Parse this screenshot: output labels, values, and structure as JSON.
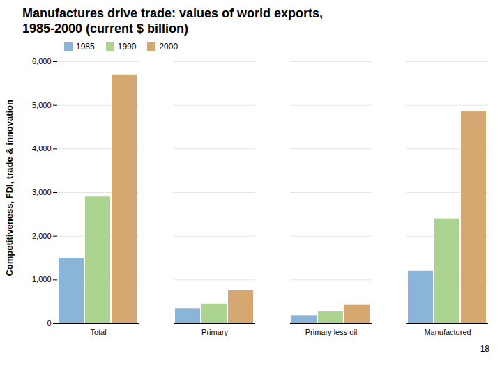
{
  "chart_data": {
    "type": "bar",
    "title": "Manufactures drive trade: values of world exports,",
    "subtitle": "1985-2000 (current $ billion)",
    "annotations": [
      "Competitiveness, FDI, trade & innovation",
      "18"
    ],
    "categories": [
      "Total",
      "Primary",
      "Primary less oil",
      "Manufactured"
    ],
    "series": [
      {
        "name": "1985",
        "color": "#8ab4d8",
        "values": [
          1500,
          330,
          170,
          1200
        ]
      },
      {
        "name": "1990",
        "color": "#aad490",
        "values": [
          2900,
          450,
          270,
          2400
        ]
      },
      {
        "name": "2000",
        "color": "#d4a870",
        "values": [
          5700,
          750,
          420,
          4850
        ]
      }
    ],
    "ylim": [
      0,
      6000
    ],
    "yticks": [
      0,
      {
        "value": 1000,
        "label": "1,000"
      },
      {
        "value": 2000,
        "label": "2,000"
      },
      {
        "value": 3000,
        "label": "3,000"
      },
      {
        "value": 4000,
        "label": "4,000"
      },
      {
        "value": 5000,
        "label": "5,000"
      },
      {
        "value": 6000,
        "label": "6,000"
      }
    ],
    "grid": true,
    "legend": "top"
  }
}
